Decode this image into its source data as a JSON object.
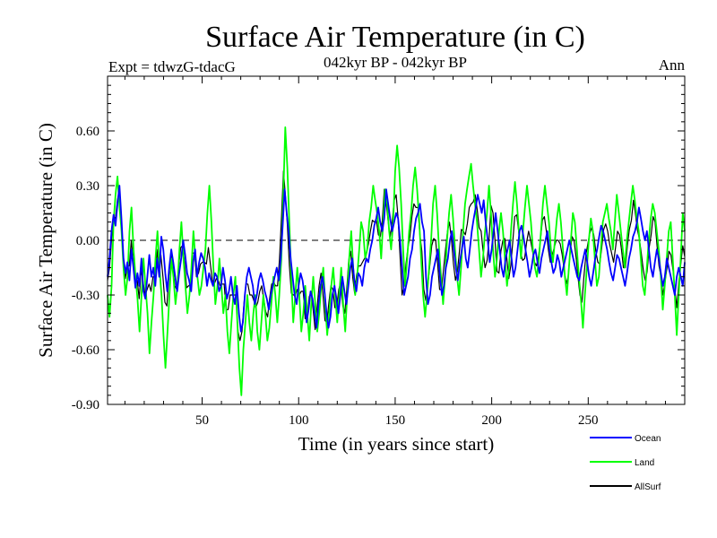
{
  "chart_data": {
    "type": "line",
    "title": "Surface Air Temperature (in C)",
    "subtitle": "042kyr BP - 042kyr BP",
    "experiment_label": "Expt = tdwzG-tdacG",
    "season_label": "Ann",
    "xlabel": "Time (in years since start)",
    "ylabel": "Surface Air Temperature (in C)",
    "xlim": [
      1,
      300
    ],
    "ylim": [
      -0.9,
      0.9
    ],
    "x_ticks": [
      "50",
      "100",
      "150",
      "200",
      "250"
    ],
    "y_ticks": [
      "-0.90",
      "-0.60",
      "-0.30",
      "0.00",
      "0.30",
      "0.60"
    ],
    "zero_line": "dashed",
    "legend_position": "bottom-right",
    "series": [
      {
        "name": "Ocean",
        "color": "#0000ff",
        "values": [
          -0.2,
          -0.1,
          0.05,
          0.14,
          0.08,
          0.2,
          0.3,
          0.12,
          -0.1,
          -0.18,
          -0.12,
          -0.22,
          -0.05,
          -0.15,
          -0.26,
          -0.18,
          -0.25,
          -0.1,
          -0.28,
          -0.32,
          -0.2,
          -0.08,
          -0.2,
          -0.15,
          -0.25,
          -0.1,
          -0.2,
          0.02,
          -0.05,
          -0.18,
          -0.28,
          -0.15,
          -0.05,
          -0.12,
          -0.2,
          -0.28,
          -0.18,
          -0.1,
          0.0,
          -0.08,
          -0.18,
          -0.22,
          -0.28,
          -0.12,
          -0.05,
          -0.2,
          -0.12,
          -0.07,
          -0.1,
          -0.15,
          -0.25,
          -0.18,
          -0.22,
          -0.25,
          -0.18,
          -0.2,
          -0.28,
          -0.25,
          -0.15,
          -0.22,
          -0.32,
          -0.28,
          -0.2,
          -0.3,
          -0.35,
          -0.25,
          -0.4,
          -0.5,
          -0.45,
          -0.3,
          -0.2,
          -0.15,
          -0.2,
          -0.25,
          -0.35,
          -0.3,
          -0.22,
          -0.18,
          -0.22,
          -0.28,
          -0.32,
          -0.38,
          -0.3,
          -0.25,
          -0.2,
          -0.15,
          -0.22,
          -0.1,
          0.08,
          0.28,
          0.15,
          0.05,
          -0.1,
          -0.2,
          -0.3,
          -0.35,
          -0.25,
          -0.18,
          -0.22,
          -0.3,
          -0.45,
          -0.38,
          -0.28,
          -0.32,
          -0.4,
          -0.48,
          -0.35,
          -0.25,
          -0.2,
          -0.28,
          -0.4,
          -0.48,
          -0.42,
          -0.3,
          -0.25,
          -0.32,
          -0.4,
          -0.3,
          -0.2,
          -0.28,
          -0.35,
          -0.25,
          -0.15,
          -0.1,
          -0.22,
          -0.28,
          -0.18,
          -0.2,
          -0.25,
          -0.15,
          -0.1,
          -0.12,
          -0.05,
          0.0,
          0.08,
          0.12,
          0.18,
          0.1,
          0.05,
          0.12,
          0.28,
          0.2,
          0.12,
          0.05,
          0.1,
          0.15,
          0.12,
          0.0,
          -0.15,
          -0.3,
          -0.25,
          -0.2,
          -0.1,
          -0.05,
          0.05,
          0.12,
          0.15,
          0.2,
          0.1,
          0.05,
          -0.2,
          -0.35,
          -0.3,
          -0.2,
          -0.15,
          -0.1,
          -0.05,
          -0.2,
          -0.3,
          -0.25,
          -0.15,
          -0.1,
          0.0,
          0.05,
          -0.05,
          -0.15,
          -0.22,
          -0.12,
          -0.05,
          0.02,
          -0.1,
          -0.15,
          -0.05,
          0.05,
          0.12,
          0.18,
          0.25,
          0.2,
          0.15,
          0.22,
          0.1,
          0.0,
          -0.12,
          -0.05,
          0.05,
          0.15,
          0.05,
          -0.05,
          -0.15,
          -0.2,
          -0.1,
          -0.05,
          0.0,
          -0.1,
          -0.2,
          -0.15,
          -0.05,
          0.05,
          0.08,
          0.02,
          -0.05,
          -0.12,
          -0.2,
          -0.15,
          -0.08,
          -0.05,
          -0.12,
          -0.18,
          -0.1,
          -0.05,
          0.0,
          0.05,
          -0.05,
          -0.12,
          -0.18,
          -0.15,
          -0.08,
          -0.12,
          -0.2,
          -0.15,
          -0.1,
          -0.05,
          0.0,
          -0.05,
          -0.1,
          -0.15,
          -0.2,
          -0.22,
          -0.15,
          -0.1,
          -0.05,
          -0.12,
          -0.2,
          -0.25,
          -0.18,
          -0.1,
          -0.05,
          0.02,
          0.08,
          0.05,
          0.0,
          -0.05,
          -0.12,
          -0.18,
          -0.22,
          -0.15,
          -0.08,
          -0.1,
          -0.15,
          -0.2,
          -0.25,
          -0.18,
          -0.1,
          -0.05,
          0.02,
          0.05,
          0.1,
          0.18,
          0.12,
          0.05,
          0.0,
          0.05,
          -0.05,
          -0.15,
          -0.2,
          -0.12,
          -0.05,
          -0.1,
          -0.18,
          -0.25,
          -0.2,
          -0.1,
          -0.15,
          -0.2,
          -0.25,
          -0.3,
          -0.2,
          -0.15,
          -0.2,
          -0.25,
          -0.12
        ]
      },
      {
        "name": "Land",
        "color": "#00ff00",
        "values": [
          -0.3,
          -0.42,
          -0.25,
          0.1,
          0.25,
          0.35,
          0.18,
          0.05,
          -0.15,
          -0.3,
          -0.2,
          0.05,
          0.18,
          -0.05,
          -0.2,
          -0.32,
          -0.5,
          -0.3,
          -0.1,
          -0.25,
          -0.4,
          -0.62,
          -0.45,
          -0.3,
          -0.1,
          0.05,
          -0.15,
          -0.3,
          -0.52,
          -0.7,
          -0.5,
          -0.3,
          -0.1,
          -0.2,
          -0.35,
          -0.25,
          -0.05,
          0.1,
          -0.1,
          -0.25,
          -0.4,
          -0.3,
          -0.15,
          0.05,
          -0.1,
          -0.2,
          -0.3,
          -0.25,
          -0.15,
          -0.05,
          0.15,
          0.3,
          0.1,
          -0.15,
          -0.35,
          -0.25,
          -0.1,
          -0.25,
          -0.4,
          -0.3,
          -0.5,
          -0.62,
          -0.45,
          -0.3,
          -0.2,
          -0.45,
          -0.7,
          -0.85,
          -0.6,
          -0.45,
          -0.3,
          -0.45,
          -0.55,
          -0.4,
          -0.3,
          -0.5,
          -0.6,
          -0.45,
          -0.3,
          -0.4,
          -0.55,
          -0.48,
          -0.35,
          -0.2,
          -0.3,
          -0.45,
          -0.3,
          -0.1,
          0.25,
          0.62,
          0.4,
          0.1,
          -0.2,
          -0.45,
          -0.3,
          -0.15,
          -0.3,
          -0.5,
          -0.4,
          -0.25,
          -0.4,
          -0.55,
          -0.35,
          -0.2,
          -0.35,
          -0.5,
          -0.4,
          -0.25,
          -0.15,
          -0.35,
          -0.52,
          -0.4,
          -0.25,
          -0.15,
          -0.3,
          -0.45,
          -0.3,
          -0.15,
          -0.35,
          -0.5,
          -0.3,
          -0.1,
          0.05,
          -0.15,
          -0.3,
          -0.2,
          -0.05,
          0.1,
          0.05,
          -0.1,
          -0.05,
          0.1,
          0.18,
          0.3,
          0.22,
          0.15,
          0.05,
          -0.1,
          0.1,
          0.28,
          0.2,
          0.05,
          -0.05,
          0.1,
          0.38,
          0.52,
          0.4,
          0.2,
          -0.05,
          -0.25,
          -0.1,
          0.05,
          0.15,
          0.3,
          0.4,
          0.28,
          0.12,
          -0.1,
          -0.3,
          -0.42,
          -0.3,
          -0.15,
          0.0,
          0.2,
          0.3,
          0.15,
          -0.05,
          -0.2,
          -0.35,
          -0.2,
          0.0,
          0.15,
          0.25,
          0.12,
          -0.05,
          -0.2,
          -0.3,
          -0.15,
          0.05,
          0.2,
          0.28,
          0.35,
          0.42,
          0.3,
          0.2,
          0.1,
          -0.05,
          -0.2,
          -0.1,
          0.05,
          0.15,
          0.3,
          0.15,
          -0.05,
          -0.2,
          -0.1,
          0.05,
          0.15,
          0.05,
          -0.1,
          -0.25,
          -0.15,
          0.05,
          0.2,
          0.32,
          0.2,
          0.05,
          -0.1,
          0.05,
          0.18,
          0.3,
          0.2,
          0.1,
          -0.05,
          -0.15,
          -0.2,
          -0.1,
          0.05,
          0.2,
          0.3,
          0.2,
          0.1,
          -0.05,
          -0.12,
          0.0,
          0.12,
          0.2,
          0.1,
          -0.05,
          -0.2,
          -0.3,
          -0.15,
          0.0,
          0.15,
          0.1,
          -0.05,
          -0.2,
          -0.32,
          -0.48,
          -0.3,
          -0.15,
          0.0,
          0.12,
          0.05,
          -0.1,
          -0.25,
          -0.2,
          -0.05,
          0.1,
          0.15,
          0.2,
          0.12,
          0.05,
          -0.05,
          0.1,
          0.25,
          0.15,
          0.05,
          -0.05,
          -0.15,
          0.0,
          0.1,
          0.2,
          0.3,
          0.22,
          0.12,
          0.05,
          -0.1,
          -0.25,
          -0.3,
          -0.15,
          0.0,
          0.12,
          0.2,
          0.15,
          0.05,
          -0.05,
          -0.2,
          -0.38,
          -0.25,
          -0.1,
          0.05,
          0.1,
          -0.1,
          -0.3,
          -0.52,
          -0.3,
          -0.1,
          0.15,
          0.05
        ]
      },
      {
        "name": "AllSurf",
        "color": "#000000",
        "values": [
          -0.22,
          -0.15,
          0.0,
          0.13,
          0.12,
          0.22,
          0.27,
          0.1,
          -0.11,
          -0.21,
          -0.14,
          -0.14,
          0.0,
          -0.12,
          -0.24,
          -0.22,
          -0.32,
          -0.16,
          -0.23,
          -0.3,
          -0.27,
          -0.24,
          -0.28,
          -0.2,
          -0.2,
          -0.05,
          -0.18,
          -0.08,
          -0.2,
          -0.34,
          -0.36,
          -0.2,
          -0.07,
          -0.14,
          -0.25,
          -0.27,
          -0.14,
          -0.04,
          -0.03,
          -0.13,
          -0.26,
          -0.25,
          -0.24,
          -0.07,
          -0.07,
          -0.2,
          -0.18,
          -0.13,
          -0.12,
          -0.12,
          -0.13,
          -0.04,
          -0.13,
          -0.22,
          -0.24,
          -0.21,
          -0.22,
          -0.25,
          -0.24,
          -0.24,
          -0.38,
          -0.38,
          -0.3,
          -0.3,
          -0.3,
          -0.3,
          -0.5,
          -0.55,
          -0.5,
          -0.35,
          -0.24,
          -0.24,
          -0.3,
          -0.3,
          -0.33,
          -0.37,
          -0.34,
          -0.28,
          -0.25,
          -0.32,
          -0.39,
          -0.42,
          -0.32,
          -0.24,
          -0.23,
          -0.25,
          -0.25,
          -0.1,
          0.13,
          0.38,
          0.24,
          0.08,
          -0.14,
          -0.29,
          -0.3,
          -0.3,
          -0.27,
          -0.3,
          -0.28,
          -0.28,
          -0.43,
          -0.43,
          -0.31,
          -0.28,
          -0.38,
          -0.49,
          -0.37,
          -0.25,
          -0.18,
          -0.3,
          -0.44,
          -0.45,
          -0.34,
          -0.25,
          -0.27,
          -0.37,
          -0.36,
          -0.27,
          -0.23,
          -0.36,
          -0.4,
          -0.27,
          -0.11,
          -0.06,
          -0.2,
          -0.29,
          -0.19,
          -0.14,
          -0.14,
          -0.12,
          -0.1,
          -0.07,
          -0.02,
          0.05,
          0.11,
          0.1,
          0.11,
          0.03,
          0.02,
          0.11,
          0.28,
          0.2,
          0.1,
          0.02,
          0.1,
          0.22,
          0.25,
          0.12,
          -0.09,
          -0.3,
          -0.25,
          -0.13,
          -0.04,
          0.02,
          0.13,
          0.2,
          0.18,
          0.18,
          0.03,
          -0.06,
          -0.27,
          -0.33,
          -0.25,
          -0.14,
          -0.03,
          0.01,
          0.0,
          -0.13,
          -0.27,
          -0.27,
          -0.16,
          -0.05,
          0.05,
          0.1,
          0.0,
          -0.13,
          -0.22,
          -0.17,
          -0.06,
          0.06,
          0.05,
          0.03,
          0.09,
          0.18,
          0.2,
          0.21,
          0.25,
          0.17,
          0.07,
          0.05,
          -0.06,
          -0.15,
          -0.11,
          0.01,
          0.19,
          0.15,
          0.0,
          -0.17,
          -0.18,
          -0.06,
          0.0,
          0.01,
          -0.1,
          -0.21,
          -0.14,
          -0.01,
          0.13,
          0.14,
          0.05,
          -0.07,
          -0.11,
          -0.1,
          -0.01,
          0.05,
          0.0,
          -0.06,
          -0.12,
          -0.14,
          -0.09,
          0.0,
          0.11,
          0.13,
          0.05,
          -0.05,
          -0.12,
          -0.08,
          -0.04,
          0.0,
          0.0,
          -0.02,
          -0.08,
          -0.16,
          -0.24,
          -0.2,
          -0.07,
          0.02,
          0.0,
          -0.09,
          -0.2,
          -0.3,
          -0.34,
          -0.2,
          -0.08,
          -0.02,
          0.04,
          0.07,
          0.03,
          -0.06,
          -0.12,
          -0.13,
          -0.04,
          0.06,
          0.09,
          0.05,
          -0.02,
          -0.07,
          -0.12,
          -0.04,
          0.05,
          0.03,
          -0.05,
          -0.15,
          -0.15,
          -0.03,
          0.06,
          0.11,
          0.22,
          0.15,
          0.06,
          0.01,
          -0.07,
          -0.16,
          -0.22,
          -0.17,
          -0.04,
          0.03,
          0.13,
          0.1,
          -0.03,
          -0.14,
          -0.2,
          -0.3,
          -0.23,
          -0.15,
          -0.06,
          -0.08,
          -0.16,
          -0.27,
          -0.37,
          -0.23,
          -0.13,
          -0.03,
          -0.09
        ]
      }
    ]
  }
}
